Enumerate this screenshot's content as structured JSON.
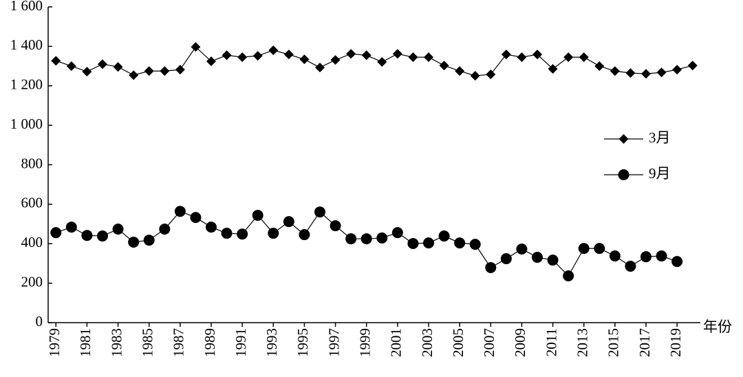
{
  "chart_data": {
    "type": "line",
    "x_label": "年份",
    "x": [
      1979,
      1980,
      1981,
      1982,
      1983,
      1984,
      1985,
      1986,
      1987,
      1988,
      1989,
      1990,
      1991,
      1992,
      1993,
      1994,
      1995,
      1996,
      1997,
      1998,
      1999,
      2000,
      2001,
      2002,
      2003,
      2004,
      2005,
      2006,
      2007,
      2008,
      2009,
      2010,
      2011,
      2012,
      2013,
      2014,
      2015,
      2016,
      2017,
      2018,
      2019,
      2020
    ],
    "series": [
      {
        "name": "3月",
        "color": "#000000",
        "marker": "diamond",
        "values": [
          1327,
          1300,
          1272,
          1310,
          1296,
          1254,
          1275,
          1275,
          1282,
          1397,
          1324,
          1355,
          1345,
          1352,
          1380,
          1359,
          1334,
          1293,
          1331,
          1362,
          1355,
          1321,
          1362,
          1345,
          1345,
          1303,
          1275,
          1251,
          1258,
          1359,
          1345,
          1359,
          1286,
          1345,
          1345,
          1300,
          1275,
          1265,
          1261,
          1268,
          1282,
          1303
        ]
      },
      {
        "name": "9月",
        "color": "#000000",
        "marker": "circle",
        "values": [
          456,
          484,
          442,
          439,
          474,
          408,
          418,
          474,
          564,
          533,
          484,
          453,
          449,
          544,
          453,
          512,
          446,
          561,
          491,
          425,
          425,
          429,
          456,
          401,
          404,
          439,
          404,
          397,
          279,
          324,
          373,
          331,
          317,
          237,
          376,
          376,
          338,
          286,
          334,
          338,
          310,
          null
        ]
      }
    ],
    "xlim": [
      1978.5,
      2020.5
    ],
    "xticks": [
      1979,
      1981,
      1983,
      1985,
      1987,
      1989,
      1991,
      1993,
      1995,
      1997,
      1999,
      2001,
      2003,
      2005,
      2007,
      2009,
      2011,
      2013,
      2015,
      2017,
      2019
    ],
    "ylim": [
      0,
      1600
    ],
    "yticks": [
      0,
      200,
      400,
      600,
      800,
      {
        "value": 1000,
        "label": "1 000"
      },
      {
        "value": 1200,
        "label": "1 200"
      },
      {
        "value": 1400,
        "label": "1 400"
      },
      {
        "value": 1600,
        "label": "1 600"
      }
    ],
    "legend": "right",
    "grid": false
  }
}
